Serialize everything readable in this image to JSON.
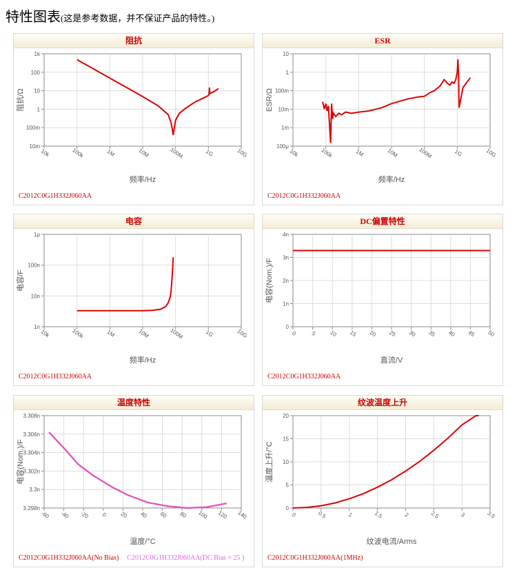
{
  "page": {
    "title": "特性图表",
    "note": "(这是参考数据，并不保证产品的特性。)"
  },
  "panels": [
    {
      "header": "阻抗",
      "caption": "C2012C0G1H332J060AA",
      "caption2": ""
    },
    {
      "header": "ESR",
      "caption": "C2012C0G1H332J060AA",
      "caption2": ""
    },
    {
      "header": "电容",
      "caption": "C2012C0G1H332J060AA",
      "caption2": ""
    },
    {
      "header": "DC偏置特性",
      "caption": "C2012C0G1H332J060AA",
      "caption2": ""
    },
    {
      "header": "温度特性",
      "caption": "C2012C0G1H332J060AA(No Bias)",
      "caption2": "C2012C0G1H332J060AA(DC Bias = 25 )"
    },
    {
      "header": "纹波温度上升",
      "caption": "C2012C0G1H332J060AA(1MHz)",
      "caption2": ""
    }
  ],
  "chart_data": [
    {
      "type": "line",
      "title": "阻抗",
      "xlabel": "频率/Hz",
      "ylabel": "阻抗/Ω",
      "xscale": "log",
      "yscale": "log",
      "xlim": [
        10000,
        10000000000
      ],
      "ylim": [
        0.01,
        1000
      ],
      "xticks": [
        10000,
        100000,
        1000000,
        10000000,
        100000000,
        1000000000,
        10000000000
      ],
      "xticklabels": [
        "10k",
        "100k",
        "1M",
        "10M",
        "100M",
        "1G",
        "10G"
      ],
      "yticks": [
        0.01,
        0.1,
        1,
        10,
        100,
        1000
      ],
      "yticklabels": [
        "10m",
        "100m",
        "1",
        "10",
        "100",
        "1k"
      ],
      "grid": true,
      "series": [
        {
          "color": "#dd0000",
          "x": [
            100000,
            1000000,
            10000000,
            30000000,
            60000000,
            72000000,
            80000000,
            85000000,
            90000000,
            100000000,
            130000000,
            200000000,
            300000000,
            400000000,
            600000000,
            1000000000,
            1050000000,
            1080000000,
            1100000000,
            1500000000,
            2000000000
          ],
          "y": [
            480,
            48,
            4.8,
            1.5,
            0.5,
            0.2,
            0.08,
            0.04,
            0.08,
            0.25,
            0.6,
            1.1,
            1.8,
            2.5,
            3.5,
            5.5,
            6.5,
            15,
            7,
            9,
            13
          ]
        }
      ]
    },
    {
      "type": "line",
      "title": "ESR",
      "xlabel": "频率/Hz",
      "ylabel": "ESR/Ω",
      "xscale": "log",
      "yscale": "log",
      "xlim": [
        10000,
        10000000000
      ],
      "ylim": [
        0.0001,
        10
      ],
      "xticks": [
        10000,
        100000,
        1000000,
        10000000,
        100000000,
        1000000000,
        10000000000
      ],
      "xticklabels": [
        "10k",
        "100k",
        "1M",
        "10M",
        "100M",
        "1G",
        "10G"
      ],
      "yticks": [
        0.0001,
        0.001,
        0.01,
        0.1,
        1,
        10
      ],
      "yticklabels": [
        "100μ",
        "1m",
        "10m",
        "100m",
        "1",
        "10"
      ],
      "grid": true,
      "series": [
        {
          "color": "#dd0000",
          "x": [
            80000,
            90000,
            100000,
            110000,
            120000,
            140000,
            150000,
            160000,
            170000,
            200000,
            250000,
            300000,
            400000,
            600000,
            1000000,
            2000000,
            5000000,
            10000000,
            30000000,
            60000000,
            100000000,
            150000000,
            200000000,
            300000000,
            400000000,
            500000000,
            600000000,
            700000000,
            800000000,
            900000000,
            1000000000,
            1050000000,
            1100000000,
            1130000000,
            1200000000,
            1500000000,
            2000000000,
            2500000000
          ],
          "y": [
            0.025,
            0.01,
            0.02,
            0.008,
            0.015,
            0.00015,
            0.02,
            0.003,
            0.006,
            0.004,
            0.006,
            0.005,
            0.007,
            0.006,
            0.007,
            0.008,
            0.012,
            0.02,
            0.035,
            0.045,
            0.05,
            0.08,
            0.1,
            0.18,
            0.4,
            0.25,
            0.2,
            0.3,
            0.25,
            0.4,
            1.0,
            5.0,
            0.5,
            0.012,
            0.02,
            0.15,
            0.3,
            0.5
          ]
        }
      ]
    },
    {
      "type": "line",
      "title": "电容",
      "xlabel": "频率/Hz",
      "ylabel": "电容/F",
      "xscale": "log",
      "yscale": "log",
      "xlim": [
        10000,
        10000000000
      ],
      "ylim": [
        1e-09,
        1e-06
      ],
      "xticks": [
        10000,
        100000,
        1000000,
        10000000,
        100000000,
        1000000000,
        10000000000
      ],
      "xticklabels": [
        "10k",
        "100k",
        "1M",
        "10M",
        "100M",
        "1G",
        "10G"
      ],
      "yticks": [
        1e-09,
        1e-08,
        1e-07,
        1e-06
      ],
      "yticklabels": [
        "1n",
        "10n",
        "100n",
        "1μ"
      ],
      "grid": true,
      "series": [
        {
          "color": "#dd0000",
          "x": [
            100000,
            1000000,
            5000000,
            10000000,
            20000000,
            35000000,
            50000000,
            60000000,
            70000000,
            75000000,
            80000000,
            85000000
          ],
          "y": [
            3.3e-09,
            3.3e-09,
            3.3e-09,
            3.32e-09,
            3.4e-09,
            3.7e-09,
            4.5e-09,
            6e-09,
            1e-08,
            2e-08,
            5e-08,
            1.8e-07
          ]
        }
      ]
    },
    {
      "type": "line",
      "title": "DC偏置特性",
      "xlabel": "直流/V",
      "ylabel": "电容(Nom.)/F",
      "xlim": [
        0,
        50
      ],
      "ylim": [
        0,
        4e-09
      ],
      "xticks": [
        0,
        5,
        10,
        15,
        20,
        25,
        30,
        35,
        40,
        45,
        50
      ],
      "xticklabels": [
        "0",
        "5",
        "10",
        "15",
        "20",
        "25",
        "30",
        "35",
        "40",
        "45",
        "50"
      ],
      "yticks": [
        0,
        1e-09,
        2e-09,
        3e-09,
        4e-09
      ],
      "yticklabels": [
        "0",
        "1n",
        "2n",
        "3n",
        "4n"
      ],
      "grid": true,
      "series": [
        {
          "color": "#dd0000",
          "x": [
            0,
            50
          ],
          "y": [
            3.3e-09,
            3.3e-09
          ]
        }
      ]
    },
    {
      "type": "line",
      "title": "温度特性",
      "xlabel": "温度/°C",
      "ylabel": "电容(Nom.)/F",
      "xlim": [
        -60,
        140
      ],
      "ylim": [
        3.298e-09,
        3.308e-09
      ],
      "xticks": [
        -60,
        -40,
        -20,
        0,
        20,
        40,
        60,
        80,
        100,
        120,
        140
      ],
      "xticklabels": [
        "-60",
        "-40",
        "-20",
        "0",
        "20",
        "40",
        "60",
        "80",
        "100",
        "120",
        "140"
      ],
      "yticks": [
        3.298e-09,
        3.3e-09,
        3.302e-09,
        3.304e-09,
        3.306e-09,
        3.308e-09
      ],
      "yticklabels": [
        "3.298n",
        "3.3n",
        "3.302n",
        "3.304n",
        "3.306n",
        "3.308n"
      ],
      "grid": true,
      "series": [
        {
          "name": "C2012C0G1H332J060AA(No Bias)",
          "color": "#dd0000",
          "x": [
            -55,
            -40,
            -25,
            -10,
            10,
            25,
            45,
            65,
            85,
            105,
            125
          ],
          "y": [
            3.3062e-09,
            3.3045e-09,
            3.3027e-09,
            3.3015e-09,
            3.3002e-09,
            3.2994e-09,
            3.2986e-09,
            3.2982e-09,
            3.298e-09,
            3.2981e-09,
            3.2985e-09
          ]
        },
        {
          "name": "C2012C0G1H332J060AA(DC Bias = 25 )",
          "color": "#dd66dd",
          "x": [
            -55,
            -40,
            -25,
            -10,
            10,
            25,
            45,
            65,
            85,
            105,
            125
          ],
          "y": [
            3.3062e-09,
            3.3045e-09,
            3.3027e-09,
            3.3015e-09,
            3.3002e-09,
            3.2994e-09,
            3.2986e-09,
            3.2982e-09,
            3.298e-09,
            3.2981e-09,
            3.2985e-09
          ]
        }
      ]
    },
    {
      "type": "line",
      "title": "纹波温度上升",
      "xlabel": "纹波电流/Arms",
      "ylabel": "温度上升/°C",
      "xlim": [
        0,
        3.5
      ],
      "ylim": [
        0,
        20
      ],
      "xticks": [
        0,
        0.5,
        1,
        1.5,
        2,
        2.5,
        3,
        3.5
      ],
      "xticklabels": [
        "0",
        "0.5",
        "1",
        "1.5",
        "2",
        "2.5",
        "3",
        "3.5"
      ],
      "yticks": [
        0,
        5,
        10,
        15,
        20
      ],
      "yticklabels": [
        "0",
        "5",
        "10",
        "15",
        "20"
      ],
      "grid": true,
      "series": [
        {
          "color": "#dd0000",
          "x": [
            0,
            0.25,
            0.5,
            0.75,
            1,
            1.25,
            1.5,
            1.75,
            2,
            2.25,
            2.5,
            2.75,
            3,
            3.25,
            3.3
          ],
          "y": [
            0,
            0.13,
            0.5,
            1.1,
            2.0,
            3.1,
            4.5,
            6.1,
            8.0,
            10.1,
            12.5,
            15.1,
            18.0,
            21.1,
            20.0
          ]
        }
      ]
    }
  ]
}
